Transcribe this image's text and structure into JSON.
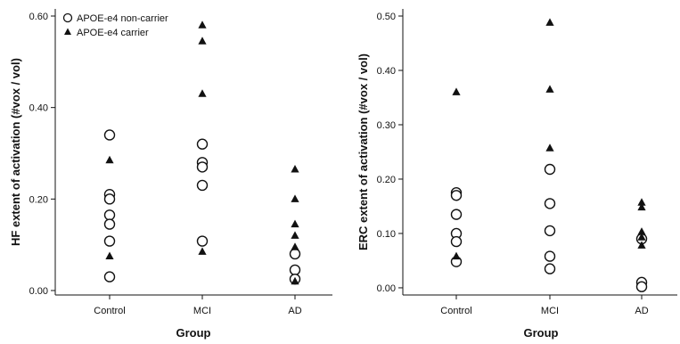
{
  "chart_data": [
    {
      "type": "scatter",
      "xlabel": "Group",
      "ylabel": "HF extent of activation (#vox / vol)",
      "categories": [
        "Control",
        "MCI",
        "AD"
      ],
      "ylim": [
        0,
        0.6
      ],
      "yticks": [
        "0.00",
        "0.20",
        "0.40",
        "0.60"
      ],
      "legend": {
        "position": "top-left"
      },
      "series": [
        {
          "name": "APOE-e4 non-carrier",
          "marker": "open-circle",
          "points": [
            {
              "x": "Control",
              "y": 0.34
            },
            {
              "x": "Control",
              "y": 0.21
            },
            {
              "x": "Control",
              "y": 0.2
            },
            {
              "x": "Control",
              "y": 0.165
            },
            {
              "x": "Control",
              "y": 0.145
            },
            {
              "x": "Control",
              "y": 0.108
            },
            {
              "x": "Control",
              "y": 0.03
            },
            {
              "x": "MCI",
              "y": 0.32
            },
            {
              "x": "MCI",
              "y": 0.28
            },
            {
              "x": "MCI",
              "y": 0.27
            },
            {
              "x": "MCI",
              "y": 0.23
            },
            {
              "x": "MCI",
              "y": 0.108
            },
            {
              "x": "AD",
              "y": 0.08
            },
            {
              "x": "AD",
              "y": 0.045
            },
            {
              "x": "AD",
              "y": 0.025
            }
          ]
        },
        {
          "name": "APOE-e4 carrier",
          "marker": "filled-triangle",
          "points": [
            {
              "x": "Control",
              "y": 0.285
            },
            {
              "x": "Control",
              "y": 0.075
            },
            {
              "x": "MCI",
              "y": 0.58
            },
            {
              "x": "MCI",
              "y": 0.545
            },
            {
              "x": "MCI",
              "y": 0.43
            },
            {
              "x": "MCI",
              "y": 0.085
            },
            {
              "x": "AD",
              "y": 0.265
            },
            {
              "x": "AD",
              "y": 0.2
            },
            {
              "x": "AD",
              "y": 0.145
            },
            {
              "x": "AD",
              "y": 0.12
            },
            {
              "x": "AD",
              "y": 0.095
            },
            {
              "x": "AD",
              "y": 0.02
            }
          ]
        }
      ]
    },
    {
      "type": "scatter",
      "xlabel": "Group",
      "ylabel": "ERC extent of activation (#vox / vol)",
      "categories": [
        "Control",
        "MCI",
        "AD"
      ],
      "ylim": [
        -0.005,
        0.5
      ],
      "yticks": [
        "0.00",
        "0.10",
        "0.20",
        "0.30",
        "0.40",
        "0.50"
      ],
      "series": [
        {
          "name": "APOE-e4 non-carrier",
          "marker": "open-circle",
          "points": [
            {
              "x": "Control",
              "y": 0.175
            },
            {
              "x": "Control",
              "y": 0.17
            },
            {
              "x": "Control",
              "y": 0.135
            },
            {
              "x": "Control",
              "y": 0.1
            },
            {
              "x": "Control",
              "y": 0.085
            },
            {
              "x": "Control",
              "y": 0.048
            },
            {
              "x": "MCI",
              "y": 0.218
            },
            {
              "x": "MCI",
              "y": 0.155
            },
            {
              "x": "MCI",
              "y": 0.105
            },
            {
              "x": "MCI",
              "y": 0.058
            },
            {
              "x": "MCI",
              "y": 0.035
            },
            {
              "x": "AD",
              "y": 0.09
            },
            {
              "x": "AD",
              "y": 0.01
            },
            {
              "x": "AD",
              "y": 0.002
            }
          ]
        },
        {
          "name": "APOE-e4 carrier",
          "marker": "filled-triangle",
          "points": [
            {
              "x": "Control",
              "y": 0.36
            },
            {
              "x": "Control",
              "y": 0.058
            },
            {
              "x": "MCI",
              "y": 0.488
            },
            {
              "x": "MCI",
              "y": 0.365
            },
            {
              "x": "MCI",
              "y": 0.257
            },
            {
              "x": "AD",
              "y": 0.157
            },
            {
              "x": "AD",
              "y": 0.148
            },
            {
              "x": "AD",
              "y": 0.103
            },
            {
              "x": "AD",
              "y": 0.093
            },
            {
              "x": "AD",
              "y": 0.078
            }
          ]
        }
      ]
    }
  ]
}
